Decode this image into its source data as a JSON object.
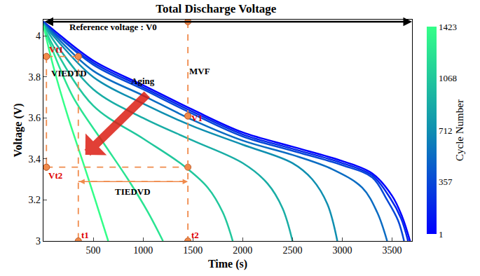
{
  "chart_data": {
    "type": "line",
    "title": "Total Discharge Voltage",
    "x_label": "Time (s)",
    "y_label": "Voltage (V)",
    "xlim": [
      0,
      3700
    ],
    "ylim": [
      3,
      4.08
    ],
    "xticks": [
      500,
      1000,
      1500,
      2000,
      2500,
      3000,
      3500
    ],
    "yticks": [
      3,
      3.2,
      3.4,
      3.6,
      3.8,
      4
    ],
    "grid": false,
    "colorbar": {
      "title": "Cycle Number",
      "range": [
        1,
        1423
      ],
      "ticks": [
        1,
        357,
        712,
        1068,
        1423
      ],
      "colors": [
        "#0000ff",
        "#0f8fb0",
        "#33ff88"
      ]
    },
    "series": [
      {
        "cycle": 1,
        "x": [
          0,
          100,
          500,
          1000,
          1500,
          2000,
          2500,
          3000,
          3300,
          3500,
          3600,
          3680
        ],
        "values": [
          4.07,
          4.03,
          3.88,
          3.76,
          3.64,
          3.53,
          3.46,
          3.39,
          3.33,
          3.22,
          3.12,
          3.0
        ]
      },
      {
        "cycle": 200,
        "x": [
          0,
          100,
          500,
          1000,
          1500,
          2000,
          2500,
          3000,
          3300,
          3480,
          3590,
          3660
        ],
        "values": [
          4.07,
          4.02,
          3.87,
          3.75,
          3.63,
          3.52,
          3.45,
          3.38,
          3.32,
          3.21,
          3.11,
          3.0
        ]
      },
      {
        "cycle": 357,
        "x": [
          0,
          100,
          500,
          1000,
          1500,
          2000,
          2500,
          3000,
          3300,
          3450,
          3560,
          3620
        ],
        "values": [
          4.07,
          4.02,
          3.86,
          3.74,
          3.62,
          3.51,
          3.44,
          3.37,
          3.31,
          3.2,
          3.1,
          3.0
        ]
      },
      {
        "cycle": 540,
        "x": [
          0,
          100,
          500,
          1000,
          1500,
          2000,
          2500,
          2900,
          3200,
          3350,
          3450
        ],
        "values": [
          4.06,
          4.01,
          3.83,
          3.71,
          3.59,
          3.49,
          3.42,
          3.35,
          3.26,
          3.14,
          3.0
        ]
      },
      {
        "cycle": 712,
        "x": [
          0,
          100,
          500,
          1000,
          1500,
          2000,
          2500,
          2700,
          2850,
          2950
        ],
        "values": [
          4.06,
          4.0,
          3.8,
          3.67,
          3.56,
          3.47,
          3.38,
          3.3,
          3.18,
          3.0
        ]
      },
      {
        "cycle": 900,
        "x": [
          0,
          100,
          500,
          1000,
          1500,
          2000,
          2250,
          2400,
          2500
        ],
        "values": [
          4.06,
          3.98,
          3.74,
          3.6,
          3.49,
          3.38,
          3.28,
          3.16,
          3.0
        ]
      },
      {
        "cycle": 1068,
        "x": [
          0,
          100,
          500,
          1000,
          1400,
          1650,
          1800,
          1900
        ],
        "values": [
          4.05,
          3.95,
          3.66,
          3.5,
          3.37,
          3.26,
          3.14,
          3.0
        ]
      },
      {
        "cycle": 1250,
        "x": [
          0,
          100,
          300,
          600,
          850,
          1050,
          1200
        ],
        "values": [
          4.05,
          3.92,
          3.7,
          3.48,
          3.3,
          3.14,
          3.0
        ]
      },
      {
        "cycle": 1423,
        "x": [
          0,
          100,
          250,
          400,
          520,
          650
        ],
        "values": [
          4.05,
          3.85,
          3.6,
          3.38,
          3.2,
          3.0
        ]
      }
    ],
    "reference_arrow": {
      "x": [
        0,
        3700
      ],
      "y": [
        4.07,
        4.07
      ]
    },
    "aging_arrow": {
      "x": [
        1050,
        420
      ],
      "y": [
        3.72,
        3.42
      ]
    },
    "guides": [
      {
        "x": [
          30,
          350
        ],
        "y": [
          3.9,
          3.9
        ]
      },
      {
        "x": [
          30,
          1450
        ],
        "y": [
          3.36,
          3.36
        ]
      },
      {
        "x": [
          30,
          30
        ],
        "y": [
          3.9,
          3.36
        ]
      },
      {
        "x": [
          350,
          350
        ],
        "y": [
          3.9,
          3.0
        ]
      },
      {
        "x": [
          1450,
          1450
        ],
        "y": [
          4.07,
          3.0
        ]
      },
      {
        "x": [
          1450,
          1450
        ],
        "y": [
          3.61,
          3.61
        ]
      }
    ],
    "tiedvd_arrow": {
      "x": [
        350,
        1450
      ],
      "y": [
        3.29,
        3.29
      ]
    },
    "annotations": [
      {
        "text": "Reference voltage : V0",
        "x": 700,
        "y": 4.045,
        "color": "#000000"
      },
      {
        "text": "MVF",
        "x": 1570,
        "y": 3.83,
        "color": "#000000"
      },
      {
        "text": "V1",
        "x": 1540,
        "y": 3.6,
        "color": "#e00000"
      },
      {
        "text": "Vt1",
        "x": 130,
        "y": 3.935,
        "color": "#e00000"
      },
      {
        "text": "VIEDTD",
        "x": 260,
        "y": 3.82,
        "color": "#000000"
      },
      {
        "text": "Aging",
        "x": 1000,
        "y": 3.78,
        "color": "#000000"
      },
      {
        "text": "Vt2",
        "x": 120,
        "y": 3.32,
        "color": "#e00000"
      },
      {
        "text": "TIEDVD",
        "x": 900,
        "y": 3.24,
        "color": "#000000"
      },
      {
        "text": "t1",
        "x": 420,
        "y": 3.03,
        "color": "#e00000"
      },
      {
        "text": "t2",
        "x": 1520,
        "y": 3.03,
        "color": "#e00000"
      }
    ]
  }
}
